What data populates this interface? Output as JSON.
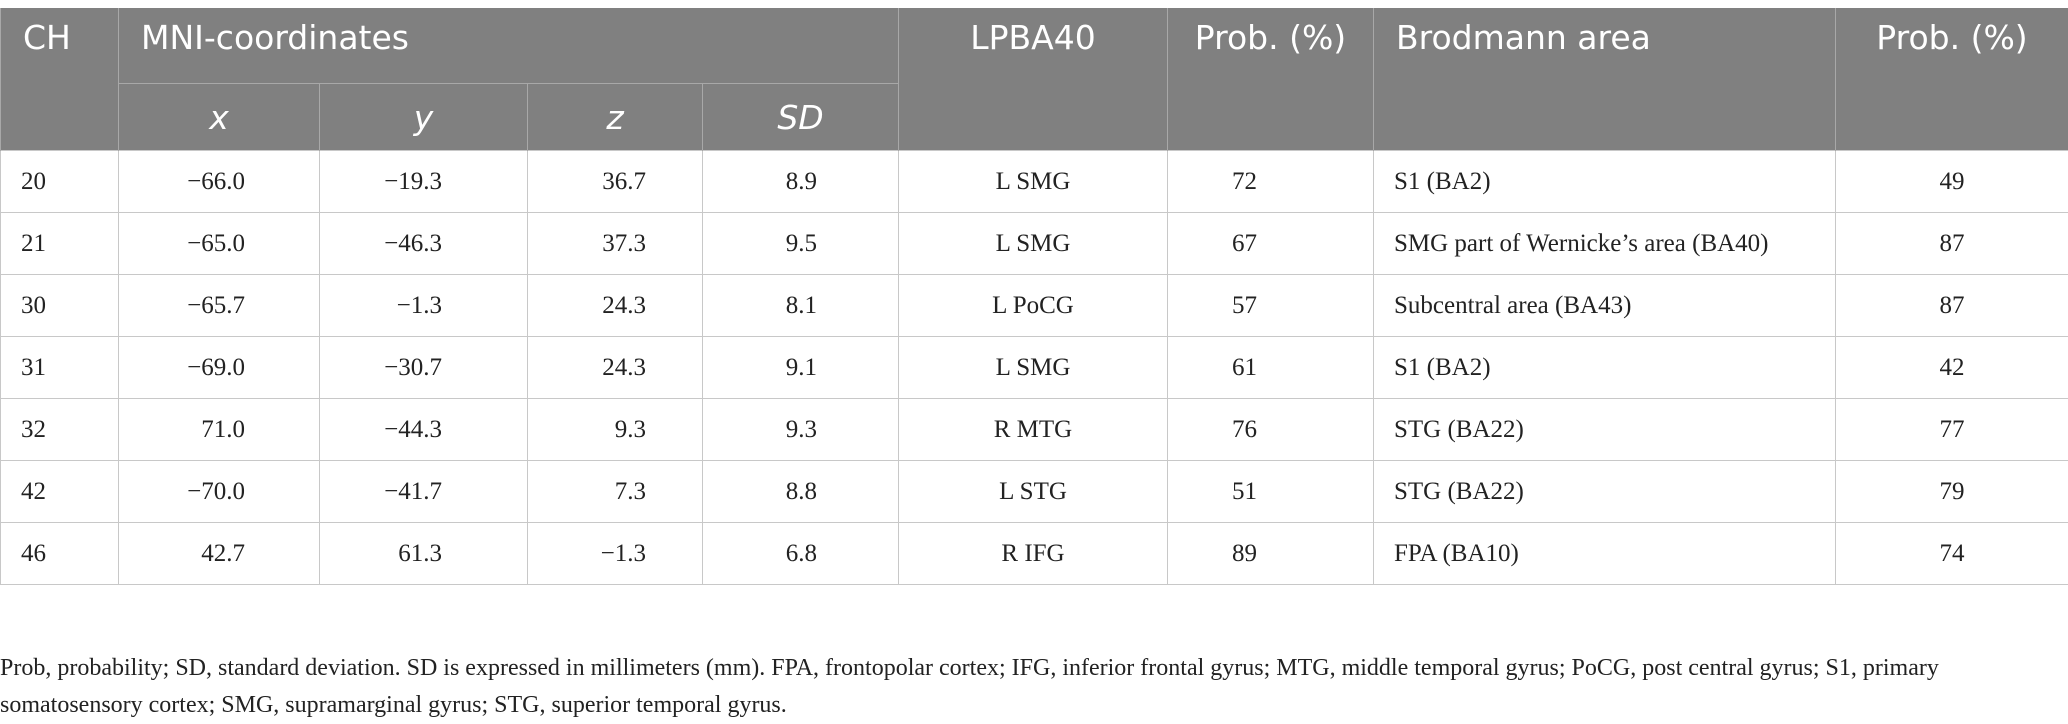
{
  "table": {
    "headers": {
      "ch": "CH",
      "mni": "MNI-coordinates",
      "x": "x",
      "y": "y",
      "z": "z",
      "sd": "SD",
      "lpba": "LPBA40",
      "prob1": "Prob. (%)",
      "brodmann": "Brodmann area",
      "prob2": "Prob. (%)"
    },
    "rows": [
      {
        "ch": "20",
        "x": "−66.0",
        "y": "−19.3",
        "z": "36.7",
        "sd": "8.9",
        "lpba": "L SMG",
        "prob1": "72",
        "brodmann": "S1 (BA2)",
        "prob2": "49"
      },
      {
        "ch": "21",
        "x": "−65.0",
        "y": "−46.3",
        "z": "37.3",
        "sd": "9.5",
        "lpba": "L SMG",
        "prob1": "67",
        "brodmann": "SMG part of Wernicke’s area (BA40)",
        "prob2": "87"
      },
      {
        "ch": "30",
        "x": "−65.7",
        "y": "−1.3",
        "z": "24.3",
        "sd": "8.1",
        "lpba": "L PoCG",
        "prob1": "57",
        "brodmann": "Subcentral area (BA43)",
        "prob2": "87"
      },
      {
        "ch": "31",
        "x": "−69.0",
        "y": "−30.7",
        "z": "24.3",
        "sd": "9.1",
        "lpba": "L SMG",
        "prob1": "61",
        "brodmann": "S1 (BA2)",
        "prob2": "42"
      },
      {
        "ch": "32",
        "x": "71.0",
        "y": "−44.3",
        "z": "9.3",
        "sd": "9.3",
        "lpba": "R MTG",
        "prob1": "76",
        "brodmann": "STG (BA22)",
        "prob2": "77"
      },
      {
        "ch": "42",
        "x": "−70.0",
        "y": "−41.7",
        "z": "7.3",
        "sd": "8.8",
        "lpba": "L STG",
        "prob1": "51",
        "brodmann": "STG (BA22)",
        "prob2": "79"
      },
      {
        "ch": "46",
        "x": "42.7",
        "y": "61.3",
        "z": "−1.3",
        "sd": "6.8",
        "lpba": "R IFG",
        "prob1": "89",
        "brodmann": "FPA (BA10)",
        "prob2": "74"
      }
    ]
  },
  "footnote": "Prob, probability; SD, standard deviation. SD is expressed in millimeters (mm). FPA, frontopolar cortex; IFG, inferior frontal gyrus; MTG, middle temporal gyrus; PoCG, post central gyrus; S1, primary somatosensory cortex; SMG, supramarginal gyrus; STG, superior temporal gyrus."
}
